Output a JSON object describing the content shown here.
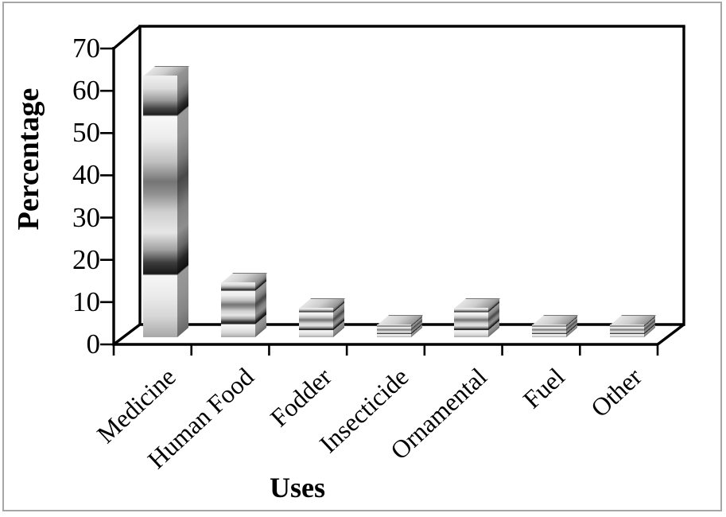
{
  "chart_data": {
    "type": "bar",
    "style": "3d-bar",
    "title": "",
    "xlabel": "Uses",
    "ylabel": "Percentage",
    "categories": [
      "Medicine",
      "Human Food",
      "Fodder",
      "Insecticide",
      "Ornamental",
      "Fuel",
      "Other"
    ],
    "values": [
      62,
      13,
      7,
      3,
      7,
      3,
      3
    ],
    "ylim": [
      0,
      70
    ],
    "y_ticks": [
      "0",
      "10",
      "20",
      "30",
      "40",
      "50",
      "60",
      "70"
    ],
    "grid": false,
    "legend": false,
    "bar_fill": "silver banded gradient",
    "colors": {
      "axis": "#000000",
      "text": "#000000",
      "frame_border": "#a6a6a6",
      "background": "#ffffff"
    }
  }
}
